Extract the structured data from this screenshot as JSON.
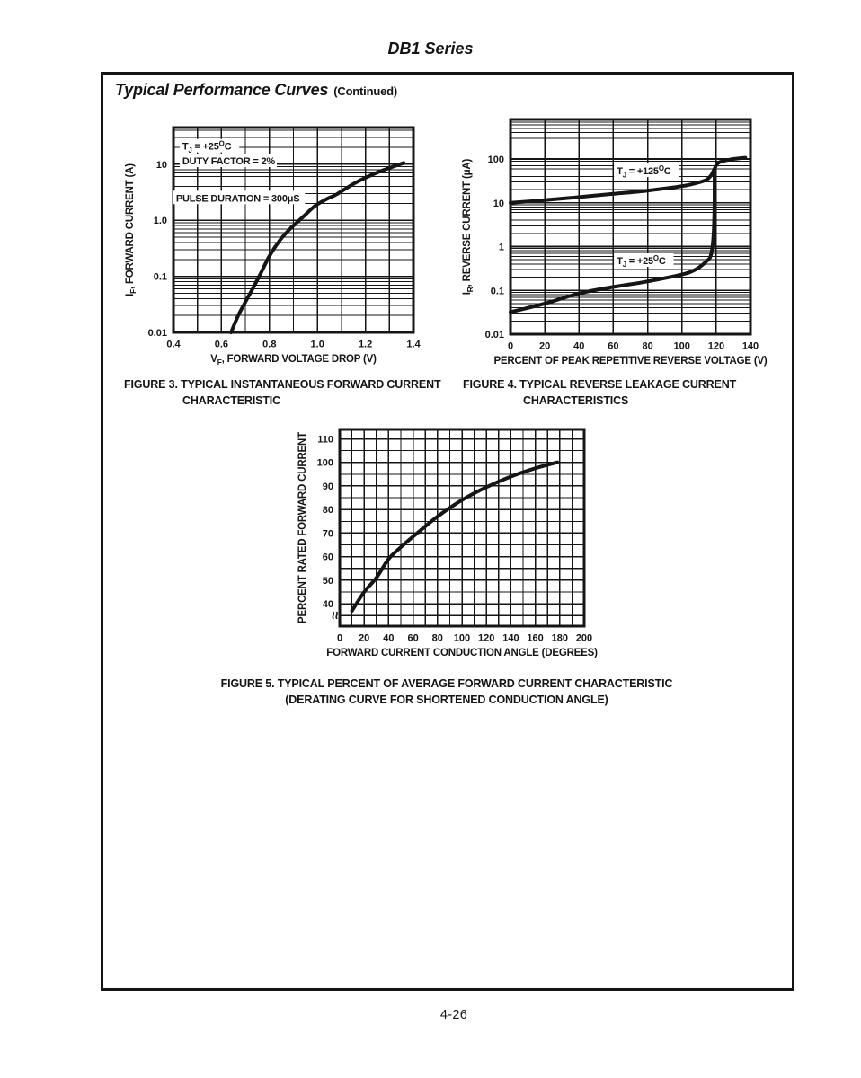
{
  "page": {
    "header_title": "DB1 Series",
    "box_heading": "Typical Performance Curves",
    "box_heading_suffix": "(Continued)",
    "page_number": "4-26"
  },
  "ink_color": "#151515",
  "chart_data": [
    {
      "name": "figure-3",
      "type": "line",
      "caption_lines": [
        "FIGURE 3.  TYPICAL INSTANTANEOUS FORWARD CURRENT",
        "CHARACTERISTIC"
      ],
      "xlabel_parts": [
        [
          "t",
          "V"
        ],
        [
          "sub",
          "F"
        ],
        [
          "t",
          ", FORWARD VOLTAGE DROP (V)"
        ]
      ],
      "ylabel_parts": [
        [
          "t",
          "I"
        ],
        [
          "sub",
          "F"
        ],
        [
          "t",
          ", FORWARD CURRENT (A)"
        ]
      ],
      "x_scale": "linear",
      "xlim": [
        0.4,
        1.4
      ],
      "x_major": [
        0.4,
        0.6,
        0.8,
        1.0,
        1.2,
        1.4
      ],
      "x_tick_labels": [
        "0.4",
        "0.6",
        "0.8",
        "1.0",
        "1.2",
        "1.4"
      ],
      "x_minor_step": 0.1,
      "y_scale": "log",
      "ylim": [
        0.01,
        45
      ],
      "y_ticks": [
        10,
        1,
        0.1,
        0.01
      ],
      "y_tick_labels": [
        "10",
        "1.0",
        "0.1",
        "0.01"
      ],
      "grid": true,
      "series": [
        {
          "name": "forward-current-25c",
          "points": [
            [
              0.64,
              0.01
            ],
            [
              0.67,
              0.02
            ],
            [
              0.7,
              0.035
            ],
            [
              0.73,
              0.06
            ],
            [
              0.76,
              0.105
            ],
            [
              0.8,
              0.23
            ],
            [
              0.84,
              0.42
            ],
            [
              0.88,
              0.66
            ],
            [
              0.94,
              1.15
            ],
            [
              0.99,
              1.8
            ],
            [
              1.04,
              2.4
            ],
            [
              1.08,
              2.9
            ],
            [
              1.16,
              4.7
            ],
            [
              1.26,
              7.4
            ],
            [
              1.36,
              10.5
            ]
          ]
        }
      ],
      "annotations": [
        {
          "x": 0.437,
          "y": 21,
          "parts": [
            [
              "t",
              "T"
            ],
            [
              "sub",
              "J"
            ],
            [
              "t",
              " = +25"
            ],
            [
              "sup",
              "O"
            ],
            [
              "t",
              "C"
            ]
          ]
        },
        {
          "x": 0.437,
          "y": 11.5,
          "parts": [
            [
              "t",
              "DUTY FACTOR = 2%"
            ]
          ]
        },
        {
          "x": 0.411,
          "y": 2.5,
          "parts": [
            [
              "t",
              "PULSE DURATION = 300μS"
            ]
          ]
        }
      ]
    },
    {
      "name": "figure-4",
      "type": "line",
      "caption_lines": [
        "FIGURE 4.  TYPICAL REVERSE LEAKAGE CURRENT",
        "CHARACTERISTICS"
      ],
      "xlabel_parts": [
        [
          "t",
          "PERCENT OF PEAK REPETITIVE REVERSE VOLTAGE (V)"
        ]
      ],
      "ylabel_parts": [
        [
          "t",
          "I"
        ],
        [
          "sub",
          "R"
        ],
        [
          "t",
          ", REVERSE CURRENT (μA)"
        ]
      ],
      "x_scale": "linear",
      "xlim": [
        0,
        140
      ],
      "x_major": [
        0,
        20,
        40,
        60,
        80,
        100,
        120,
        140
      ],
      "x_tick_labels": [
        "0",
        "20",
        "40",
        "60",
        "80",
        "100",
        "120",
        "140"
      ],
      "x_minor_step": 20,
      "y_scale": "log",
      "ylim": [
        0.01,
        800
      ],
      "y_ticks": [
        100,
        10,
        1,
        0.1,
        0.01
      ],
      "y_tick_labels": [
        "100",
        "10",
        "1",
        "0.1",
        "0.01"
      ],
      "grid": true,
      "series": [
        {
          "name": "reverse-current-tj-125c",
          "points": [
            [
              0,
              10
            ],
            [
              20,
              11.5
            ],
            [
              40,
              13.5
            ],
            [
              60,
              16
            ],
            [
              80,
              19
            ],
            [
              100,
              24
            ],
            [
              108,
              28
            ],
            [
              114,
              33
            ],
            [
              117,
              42
            ],
            [
              119,
              60
            ],
            [
              121,
              80
            ],
            [
              125,
              92
            ],
            [
              130,
              100
            ],
            [
              137,
              107
            ]
          ]
        },
        {
          "name": "reverse-current-tj-25c",
          "points": [
            [
              0,
              0.032
            ],
            [
              20,
              0.05
            ],
            [
              40,
              0.085
            ],
            [
              60,
              0.12
            ],
            [
              80,
              0.16
            ],
            [
              100,
              0.23
            ],
            [
              108,
              0.3
            ],
            [
              114,
              0.45
            ],
            [
              117,
              0.65
            ],
            [
              118.5,
              2
            ],
            [
              119,
              10
            ],
            [
              119,
              55
            ]
          ]
        }
      ],
      "annotations": [
        {
          "x": 62,
          "y": 54,
          "parts": [
            [
              "t",
              "T"
            ],
            [
              "sub",
              "J"
            ],
            [
              "t",
              " = +125"
            ],
            [
              "sup",
              "O"
            ],
            [
              "t",
              "C"
            ]
          ]
        },
        {
          "x": 62,
          "y": 0.48,
          "parts": [
            [
              "t",
              "T"
            ],
            [
              "sub",
              "J"
            ],
            [
              "t",
              " = +25"
            ],
            [
              "sup",
              "O"
            ],
            [
              "t",
              "C"
            ]
          ]
        }
      ]
    },
    {
      "name": "figure-5",
      "type": "line",
      "caption_lines": [
        "FIGURE 5.  TYPICAL PERCENT OF AVERAGE FORWARD CURRENT CHARACTERISTIC",
        "(DERATING CURVE FOR SHORTENED CONDUCTION ANGLE)"
      ],
      "xlabel_parts": [
        [
          "t",
          "FORWARD CURRENT CONDUCTION ANGLE (DEGREES)"
        ]
      ],
      "ylabel_parts": [
        [
          "t",
          "PERCENT RATED FORWARD CURRENT"
        ]
      ],
      "x_scale": "linear",
      "xlim": [
        0,
        200
      ],
      "x_major": [
        0,
        20,
        40,
        60,
        80,
        100,
        120,
        140,
        160,
        180,
        200
      ],
      "x_tick_labels": [
        "0",
        "20",
        "40",
        "60",
        "80",
        "100",
        "120",
        "140",
        "160",
        "180",
        "200"
      ],
      "x_minor_step": 10,
      "y_scale": "linear",
      "ylim": [
        30.5,
        114
      ],
      "y_ticks": [
        110,
        100,
        90,
        80,
        70,
        60,
        50,
        40
      ],
      "y_tick_labels": [
        "110",
        "100",
        "90",
        "80",
        "70",
        "60",
        "50",
        "40"
      ],
      "y_minor_step": 5,
      "axis_break": true,
      "grid": true,
      "series": [
        {
          "name": "derating-curve",
          "points": [
            [
              10,
              37
            ],
            [
              20,
              45
            ],
            [
              30,
              51
            ],
            [
              40,
              59
            ],
            [
              50,
              64
            ],
            [
              60,
              68.5
            ],
            [
              80,
              77
            ],
            [
              100,
              84
            ],
            [
              120,
              89.5
            ],
            [
              140,
              94
            ],
            [
              160,
              97.5
            ],
            [
              178,
              100
            ]
          ]
        }
      ],
      "annotations": []
    }
  ]
}
